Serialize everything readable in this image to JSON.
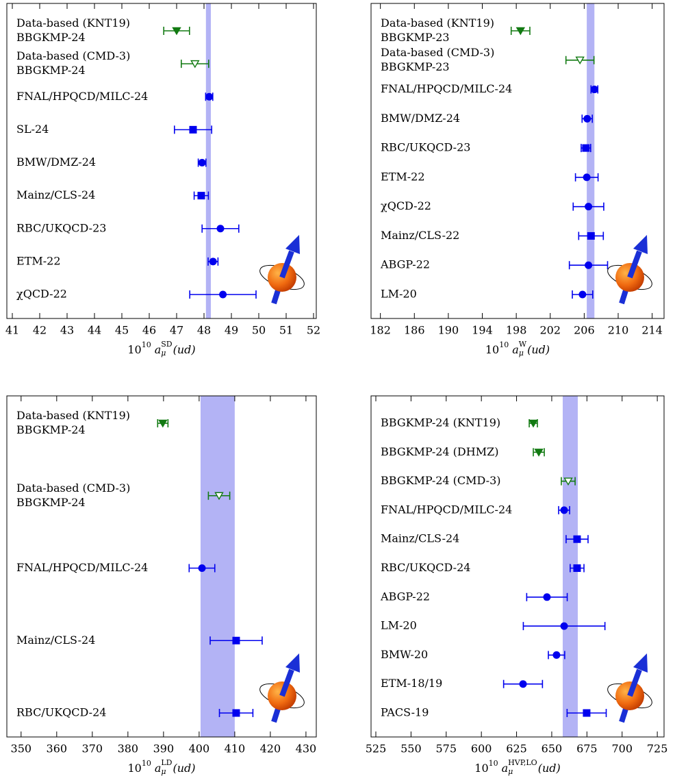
{
  "chart_data": [
    {
      "type": "errorbar",
      "categories": [
        [
          "Data-based (KNT19)",
          "BBGKMP-24"
        ],
        [
          "Data-based (CMD-3)",
          "BBGKMP-24"
        ],
        [
          "FNAL/HPQCD/MILC-24"
        ],
        [
          "SL-24"
        ],
        [
          "BMW/DMZ-24"
        ],
        [
          "Mainz/CLS-24"
        ],
        [
          "RBC/UKQCD-23"
        ],
        [
          "ETM-22"
        ],
        [
          "χQCD-22"
        ]
      ],
      "values": [
        47.0,
        47.67,
        48.19,
        47.6,
        47.93,
        47.9,
        48.6,
        48.33,
        48.69
      ],
      "errors": [
        0.47,
        0.5,
        0.13,
        0.68,
        0.14,
        0.26,
        0.67,
        0.18,
        1.21
      ],
      "markers": [
        "triangle-down",
        "triangle-down-open",
        "circle",
        "square",
        "circle",
        "square",
        "circle",
        "circle",
        "circle"
      ],
      "colors": [
        "#127a12",
        "#127a12",
        "#0000ee",
        "#0000ee",
        "#0000ee",
        "#0000ee",
        "#0000ee",
        "#0000ee",
        "#0000ee"
      ],
      "band": [
        48.07,
        48.25
      ],
      "band_color": "#b3b3f5",
      "xlim": [
        40.8,
        52.1
      ],
      "xticks": [
        41,
        42,
        43,
        44,
        45,
        46,
        47,
        48,
        49,
        50,
        51,
        52
      ],
      "xlabel": {
        "base": "10",
        "exponent": "10",
        "symbol": "a",
        "subscript": "μ",
        "superscript": "SD",
        "argument": "(ud)"
      }
    },
    {
      "type": "errorbar",
      "categories": [
        [
          "Data-based (KNT19)",
          "BBGKMP-23"
        ],
        [
          "Data-based (CMD-3)",
          "BBGKMP-23"
        ],
        [
          "FNAL/HPQCD/MILC-24"
        ],
        [
          "BMW/DMZ-24"
        ],
        [
          "RBC/UKQCD-23"
        ],
        [
          "ETM-22"
        ],
        [
          "χQCD-22"
        ],
        [
          "Mainz/CLS-22"
        ],
        [
          "ABGP-22"
        ],
        [
          "LM-20"
        ]
      ],
      "values": [
        198.5,
        205.5,
        207.2,
        206.35,
        206.2,
        206.3,
        206.5,
        206.8,
        206.5,
        205.8
      ],
      "errors": [
        1.1,
        1.65,
        0.4,
        0.6,
        0.56,
        1.33,
        1.8,
        1.45,
        2.25,
        1.2
      ],
      "markers": [
        "triangle-down",
        "triangle-down-open",
        "circle",
        "circle",
        "square",
        "circle",
        "circle",
        "square",
        "circle",
        "circle"
      ],
      "colors": [
        "#127a12",
        "#127a12",
        "#0000ee",
        "#0000ee",
        "#0000ee",
        "#0000ee",
        "#0000ee",
        "#0000ee",
        "#0000ee",
        "#0000ee"
      ],
      "band": [
        206.3,
        207.2
      ],
      "band_color": "#b3b3f5",
      "xlim": [
        180.9,
        215.4
      ],
      "xticks": [
        182,
        186,
        190,
        194,
        198,
        202,
        206,
        210,
        214
      ],
      "xlabel": {
        "base": "10",
        "exponent": "10",
        "symbol": "a",
        "subscript": "μ",
        "superscript": "W",
        "argument": "(ud)"
      }
    },
    {
      "type": "errorbar",
      "categories": [
        [
          "Data-based (KNT19)",
          "BBGKMP-24"
        ],
        [
          "Data-based (CMD-3)",
          "BBGKMP-24"
        ],
        [
          "FNAL/HPQCD/MILC-24"
        ],
        [
          "Mainz/CLS-24"
        ],
        [
          "RBC/UKQCD-24"
        ]
      ],
      "values": [
        389.8,
        405.6,
        400.8,
        410.4,
        410.4
      ],
      "errors": [
        1.45,
        3.0,
        3.6,
        7.3,
        4.7
      ],
      "markers": [
        "triangle-down",
        "triangle-down-open",
        "circle",
        "square",
        "square"
      ],
      "colors": [
        "#127a12",
        "#127a12",
        "#0000ee",
        "#0000ee",
        "#0000ee"
      ],
      "band": [
        400.4,
        410.0
      ],
      "band_color": "#b3b3f5",
      "xlim": [
        346,
        432.9
      ],
      "xticks": [
        350,
        360,
        370,
        380,
        390,
        400,
        410,
        420,
        430
      ],
      "xlabel": {
        "base": "10",
        "exponent": "10",
        "symbol": "a",
        "subscript": "μ",
        "superscript": "LD",
        "argument": "(ud)"
      }
    },
    {
      "type": "errorbar",
      "categories": [
        [
          "BBGKMP-24 (KNT19)"
        ],
        [
          "BBGKMP-24 (DHMZ)"
        ],
        [
          "BBGKMP-24 (CMD-3)"
        ],
        [
          "FNAL/HPQCD/MILC-24"
        ],
        [
          "Mainz/CLS-24"
        ],
        [
          "RBC/UKQCD-24"
        ],
        [
          "ABGP-22"
        ],
        [
          "LM-20"
        ],
        [
          "BMW-20"
        ],
        [
          "ETM-18/19"
        ],
        [
          "PACS-19"
        ]
      ],
      "values": [
        636.9,
        640.8,
        661.7,
        658.8,
        668,
        668,
        646.6,
        658.8,
        653.4,
        629.6,
        674.8
      ],
      "errors": [
        2.9,
        3.9,
        4.9,
        3.9,
        7.8,
        4.9,
        14.4,
        29,
        5.8,
        13.8,
        13.9
      ],
      "markers": [
        "triangle-down",
        "triangle-down",
        "triangle-down-open",
        "circle",
        "square",
        "square",
        "circle",
        "circle",
        "circle",
        "circle",
        "square"
      ],
      "colors": [
        "#127a12",
        "#127a12",
        "#127a12",
        "#0000ee",
        "#0000ee",
        "#0000ee",
        "#0000ee",
        "#0000ee",
        "#0000ee",
        "#0000ee",
        "#0000ee"
      ],
      "band": [
        657.8,
        668.5
      ],
      "band_color": "#b3b3f5",
      "xlim": [
        521.6,
        729.8
      ],
      "xticks": [
        525,
        550,
        575,
        600,
        625,
        650,
        675,
        700,
        725
      ],
      "xlabel": {
        "base": "10",
        "exponent": "10",
        "symbol": "a",
        "subscript": "μ",
        "superscript": "HVP,LO",
        "argument": "(ud)"
      }
    }
  ]
}
